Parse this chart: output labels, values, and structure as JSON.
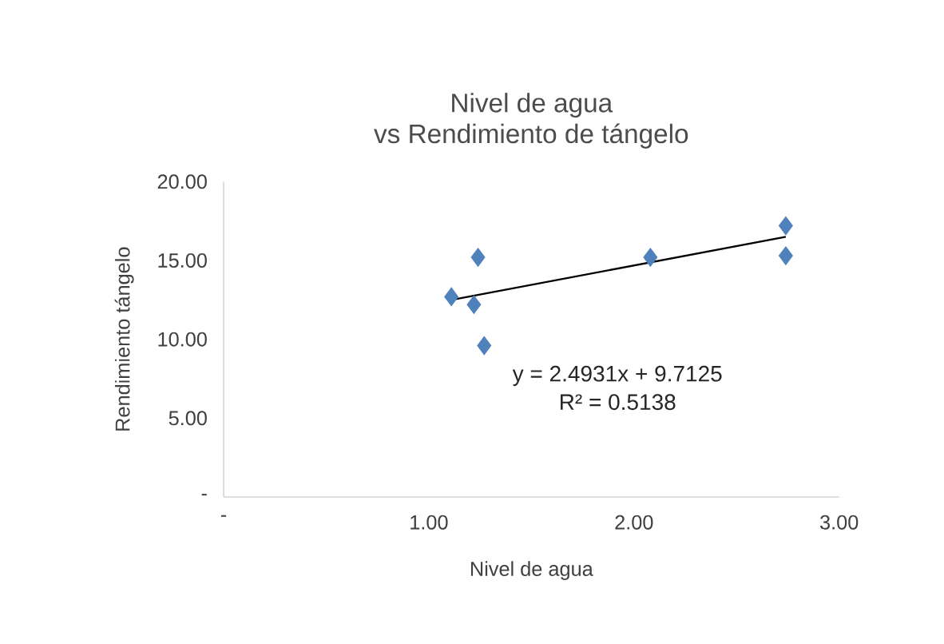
{
  "chart_data": {
    "type": "scatter",
    "title": "Nivel de agua\nvs Rendimiento de tángelo",
    "xlabel": "Nivel de agua",
    "ylabel": "Rendimiento tángelo",
    "annotations": [
      "y = 2.4931x + 9.7125",
      "R² = 0.5138"
    ],
    "series": [
      {
        "type": "scatter",
        "color": "#4f81bd",
        "marker": "diamond",
        "x": [
          1.11,
          1.22,
          1.24,
          1.27,
          2.08,
          2.74,
          2.74
        ],
        "values": [
          12.7,
          12.2,
          15.2,
          9.6,
          15.2,
          17.2,
          15.3
        ]
      },
      {
        "type": "line",
        "color": "#000000",
        "marker": "none",
        "x": [
          1.11,
          2.74
        ],
        "values": [
          12.5,
          16.5
        ]
      }
    ],
    "xlim": [
      0,
      3
    ],
    "ylim": [
      0,
      20
    ],
    "xticks": [
      {
        "value": 0,
        "label": "-"
      },
      {
        "value": 1,
        "label": "1.00"
      },
      {
        "value": 2,
        "label": "2.00"
      },
      {
        "value": 3,
        "label": "3.00"
      }
    ],
    "yticks": [
      {
        "value": 0,
        "label": "-"
      },
      {
        "value": 5,
        "label": "5.00"
      },
      {
        "value": 10,
        "label": "10.00"
      },
      {
        "value": 15,
        "label": "15.00"
      },
      {
        "value": 20,
        "label": "20.00"
      }
    ],
    "grid": false
  }
}
